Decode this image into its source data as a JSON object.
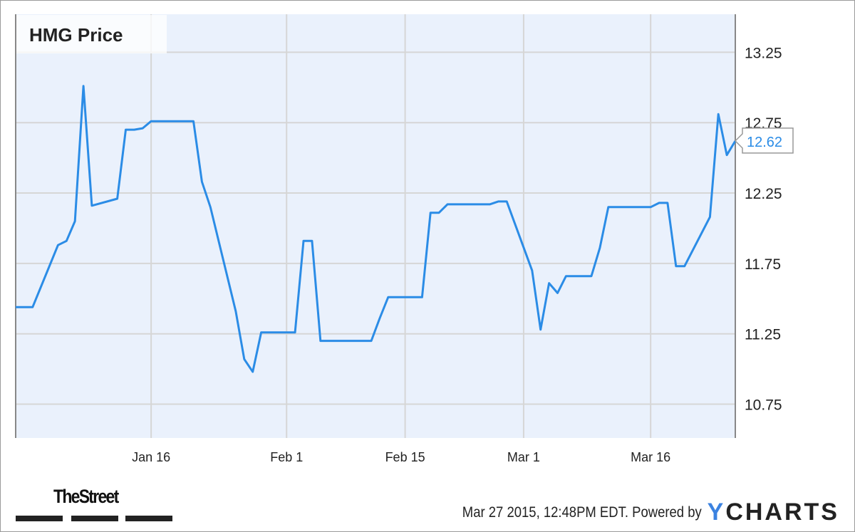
{
  "chart_data": {
    "type": "line",
    "title": "HMG Price",
    "xlabel": "",
    "ylabel": "",
    "xlim": [
      "2014-12-31",
      "2015-03-26"
    ],
    "ylim": [
      10.51,
      13.52
    ],
    "grid": true,
    "x_ticks": [
      {
        "date": "2015-01-16",
        "label": "Jan 16"
      },
      {
        "date": "2015-02-01",
        "label": "Feb 1"
      },
      {
        "date": "2015-02-15",
        "label": "Feb 15"
      },
      {
        "date": "2015-03-01",
        "label": "Mar 1"
      },
      {
        "date": "2015-03-16",
        "label": "Mar 16"
      }
    ],
    "y_ticks": [
      {
        "value": 13.25,
        "label": "13.25"
      },
      {
        "value": 12.75,
        "label": "12.75"
      },
      {
        "value": 12.25,
        "label": "12.25"
      },
      {
        "value": 11.75,
        "label": "11.75"
      },
      {
        "value": 11.25,
        "label": "11.25"
      },
      {
        "value": 10.75,
        "label": "10.75"
      }
    ],
    "series": [
      {
        "color": "#2b8ce6",
        "x": [
          "2014-12-31",
          "2015-01-02",
          "2015-01-05",
          "2015-01-06",
          "2015-01-07",
          "2015-01-08",
          "2015-01-09",
          "2015-01-12",
          "2015-01-13",
          "2015-01-14",
          "2015-01-15",
          "2015-01-16",
          "2015-01-20",
          "2015-01-21",
          "2015-01-22",
          "2015-01-23",
          "2015-01-26",
          "2015-01-27",
          "2015-01-28",
          "2015-01-29",
          "2015-01-30",
          "2015-02-02",
          "2015-02-03",
          "2015-02-04",
          "2015-02-05",
          "2015-02-06",
          "2015-02-09",
          "2015-02-10",
          "2015-02-11",
          "2015-02-12",
          "2015-02-13",
          "2015-02-17",
          "2015-02-18",
          "2015-02-19",
          "2015-02-20",
          "2015-02-23",
          "2015-02-24",
          "2015-02-25",
          "2015-02-26",
          "2015-02-27",
          "2015-03-02",
          "2015-03-03",
          "2015-03-04",
          "2015-03-05",
          "2015-03-06",
          "2015-03-09",
          "2015-03-10",
          "2015-03-11",
          "2015-03-12",
          "2015-03-13",
          "2015-03-16",
          "2015-03-17",
          "2015-03-18",
          "2015-03-19",
          "2015-03-20",
          "2015-03-23",
          "2015-03-24",
          "2015-03-25",
          "2015-03-26"
        ],
        "values": [
          11.44,
          11.44,
          11.88,
          11.91,
          12.05,
          13.01,
          12.16,
          12.21,
          12.7,
          12.7,
          12.71,
          12.76,
          12.76,
          12.76,
          12.33,
          12.15,
          11.41,
          11.07,
          10.98,
          11.26,
          11.26,
          11.26,
          11.91,
          11.91,
          11.2,
          11.2,
          11.2,
          11.2,
          11.2,
          11.36,
          11.51,
          11.51,
          12.11,
          12.11,
          12.17,
          12.17,
          12.17,
          12.17,
          12.19,
          12.19,
          11.7,
          11.28,
          11.61,
          11.54,
          11.66,
          11.66,
          11.86,
          12.15,
          12.15,
          12.15,
          12.15,
          12.18,
          12.18,
          11.73,
          11.73,
          12.08,
          12.81,
          12.52,
          12.62
        ]
      }
    ],
    "last_value_label": "12.62"
  },
  "footer": {
    "brand_left": "TheStreet",
    "timestamp": "Mar 27 2015, 12:48PM EDT.",
    "powered_by": "Powered by",
    "brand_right_y": "Y",
    "brand_right_rest": "CHARTS"
  }
}
